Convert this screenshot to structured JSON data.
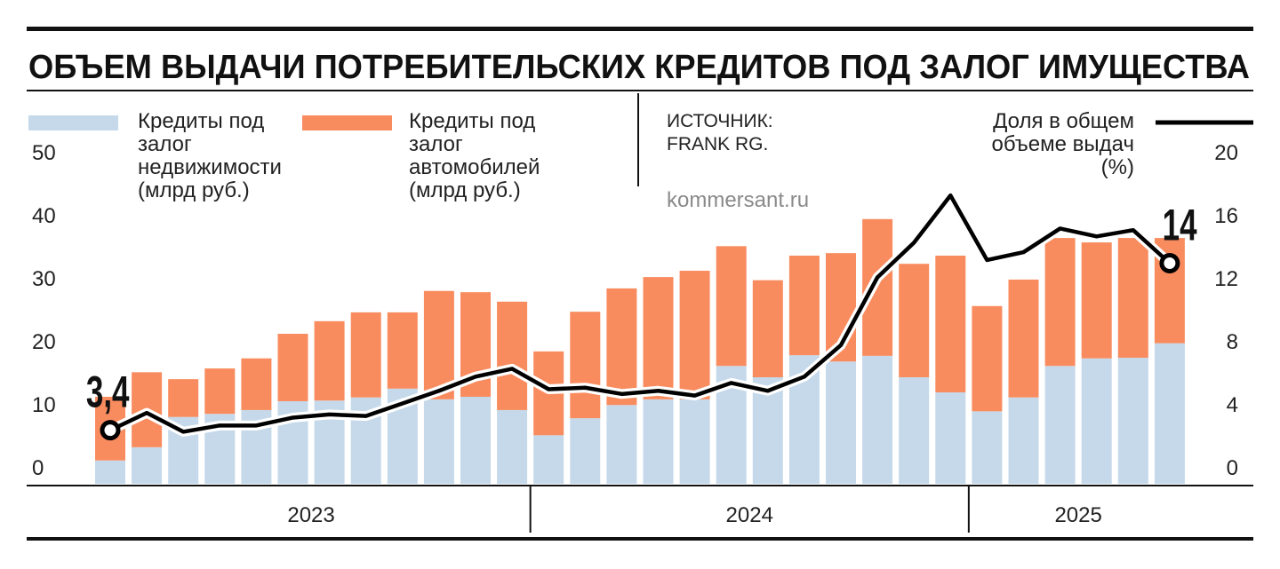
{
  "chart_data": {
    "type": "bar",
    "stacked": true,
    "title": "ОБЪЕМ ВЫДАЧИ ПОТРЕБИТЕЛЬСКИХ КРЕДИТОВ ПОД ЗАЛОГ ИМУЩЕСТВА",
    "source": "ИСТОЧНИК: FRANK RG.",
    "watermark": "kommersant.ru",
    "categories": [
      null,
      null,
      null,
      null,
      null,
      null,
      null,
      null,
      null,
      null,
      null,
      null,
      null,
      null,
      null,
      null,
      null,
      null,
      null,
      null,
      null,
      null,
      null,
      null,
      null,
      null,
      null,
      null,
      null,
      null
    ],
    "x_groups": [
      {
        "label": "2023",
        "from": 0,
        "to": 11
      },
      {
        "label": "2024",
        "from": 12,
        "to": 23
      },
      {
        "label": "2025",
        "from": 24,
        "to": 29
      }
    ],
    "series": [
      {
        "name": "Кредиты под залог недвижимости (млрд руб.)",
        "color": "#c5d9ea",
        "values": [
          3.7,
          5.8,
          10.6,
          11.1,
          11.7,
          13.1,
          13.2,
          13.7,
          15.1,
          13.4,
          13.8,
          11.7,
          7.7,
          10.4,
          12.5,
          13.4,
          13.4,
          18.7,
          16.9,
          20.4,
          19.4,
          20.3,
          16.9,
          14.5,
          11.5,
          13.7,
          18.7,
          19.9,
          20.0,
          22.3
        ]
      },
      {
        "name": "Кредиты под залог автомобилей (млрд руб.)",
        "color": "#f98c5f",
        "values": [
          10.1,
          11.9,
          6.0,
          7.2,
          8.2,
          10.7,
          12.6,
          13.5,
          12.1,
          17.2,
          16.6,
          17.2,
          13.3,
          16.9,
          18.5,
          19.4,
          20.4,
          19.0,
          15.4,
          15.8,
          17.2,
          21.7,
          18.0,
          21.7,
          16.7,
          18.7,
          20.3,
          18.4,
          19.0,
          16.7
        ]
      },
      {
        "name": "Доля в общем объеме выдач (%)",
        "color": "#000000",
        "type": "line",
        "axis": "y2",
        "values": [
          3.4,
          4.5,
          3.3,
          3.7,
          3.7,
          4.2,
          4.4,
          4.3,
          5.1,
          5.9,
          6.8,
          7.3,
          6.0,
          6.1,
          5.7,
          5.9,
          5.6,
          6.4,
          5.9,
          6.8,
          8.8,
          13.1,
          15.3,
          18.3,
          14.2,
          14.7,
          16.2,
          15.7,
          16.1,
          14
        ],
        "value_labels": [
          "3,4",
          null,
          null,
          null,
          null,
          null,
          null,
          null,
          null,
          null,
          null,
          null,
          null,
          null,
          null,
          null,
          null,
          null,
          null,
          null,
          null,
          null,
          null,
          null,
          null,
          null,
          null,
          null,
          null,
          "14"
        ]
      }
    ],
    "ylim": [
      0,
      50
    ],
    "yticks": [
      0,
      10,
      20,
      30,
      40,
      50
    ],
    "y2lim": [
      0,
      20
    ],
    "y2ticks": [
      0,
      4,
      8,
      12,
      16,
      20
    ],
    "grid": false
  }
}
